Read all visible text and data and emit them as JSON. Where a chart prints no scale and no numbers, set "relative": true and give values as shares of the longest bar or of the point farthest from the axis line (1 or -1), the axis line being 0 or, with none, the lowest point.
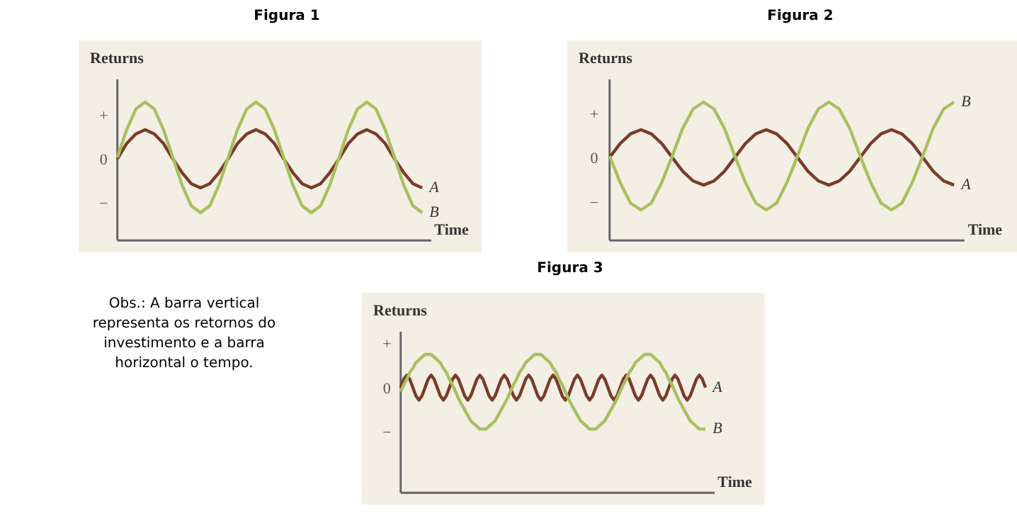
{
  "chart_data": [
    {
      "type": "line",
      "title": "Figura 1",
      "xlabel": "Time",
      "ylabel": "Returns",
      "relative": true,
      "categories": [
        null,
        null,
        null,
        null,
        null,
        null,
        null,
        null,
        null,
        null,
        null,
        null,
        null,
        null,
        null,
        null,
        null,
        null,
        null,
        null,
        null,
        null,
        null,
        null,
        null,
        null,
        null,
        null,
        null,
        null,
        null,
        null,
        null,
        null
      ],
      "annotations": [
        "+",
        "0",
        "−"
      ],
      "series": [
        {
          "name": "A",
          "color": "#7b3b2a",
          "values": [
            0.59,
            0.7,
            0.77,
            0.8,
            0.77,
            0.7,
            0.59,
            0.49,
            0.41,
            0.38,
            0.41,
            0.49,
            0.59,
            0.7,
            0.77,
            0.8,
            0.77,
            0.7,
            0.59,
            0.49,
            0.41,
            0.38,
            0.41,
            0.49,
            0.59,
            0.7,
            0.77,
            0.8,
            0.77,
            0.7,
            0.59,
            0.49,
            0.41,
            0.38
          ]
        },
        {
          "name": "B",
          "color": "#a8c060",
          "values": [
            0.6,
            0.8,
            0.95,
            1,
            0.95,
            0.8,
            0.6,
            0.4,
            0.25,
            0.2,
            0.25,
            0.4,
            0.6,
            0.8,
            0.95,
            1,
            0.95,
            0.8,
            0.6,
            0.4,
            0.25,
            0.2,
            0.25,
            0.4,
            0.6,
            0.8,
            0.95,
            1,
            0.95,
            0.8,
            0.6,
            0.4,
            0.25,
            0.2
          ]
        }
      ]
    },
    {
      "type": "line",
      "title": "Figura 2",
      "xlabel": "Time",
      "ylabel": "Returns",
      "relative": true,
      "categories": [
        null,
        null,
        null,
        null,
        null,
        null,
        null,
        null,
        null,
        null,
        null,
        null,
        null,
        null,
        null,
        null,
        null,
        null,
        null,
        null,
        null,
        null,
        null,
        null,
        null,
        null,
        null,
        null,
        null,
        null,
        null,
        null,
        null,
        null
      ],
      "annotations": [
        "+",
        "0",
        "−"
      ],
      "series": [
        {
          "name": "A",
          "color": "#7b3b2a",
          "values": [
            0.6,
            0.7,
            0.77,
            0.8,
            0.77,
            0.7,
            0.6,
            0.5,
            0.43,
            0.4,
            0.43,
            0.5,
            0.6,
            0.7,
            0.77,
            0.8,
            0.77,
            0.7,
            0.6,
            0.5,
            0.43,
            0.4,
            0.43,
            0.5,
            0.6,
            0.7,
            0.77,
            0.8,
            0.77,
            0.7,
            0.6,
            0.5,
            0.43,
            0.4
          ]
        },
        {
          "name": "B",
          "color": "#a8c060",
          "values": [
            0.61,
            0.42,
            0.27,
            0.22,
            0.27,
            0.42,
            0.61,
            0.81,
            0.95,
            1,
            0.95,
            0.81,
            0.61,
            0.42,
            0.27,
            0.22,
            0.27,
            0.42,
            0.61,
            0.81,
            0.95,
            1,
            0.95,
            0.81,
            0.61,
            0.42,
            0.27,
            0.22,
            0.27,
            0.42,
            0.61,
            0.81,
            0.95,
            1
          ]
        }
      ]
    },
    {
      "type": "line",
      "title": "Figura 3",
      "xlabel": "Time",
      "ylabel": "Returns",
      "relative": true,
      "categories": [
        null,
        null,
        null,
        null,
        null,
        null,
        null,
        null,
        null,
        null,
        null,
        null,
        null,
        null,
        null,
        null,
        null,
        null,
        null,
        null,
        null,
        null,
        null,
        null,
        null,
        null,
        null,
        null,
        null,
        null,
        null,
        null,
        null,
        null,
        null,
        null,
        null,
        null,
        null,
        null,
        null,
        null,
        null,
        null,
        null,
        null,
        null,
        null,
        null,
        null,
        null,
        null,
        null,
        null,
        null,
        null,
        null,
        null,
        null,
        null,
        null,
        null,
        null,
        null,
        null,
        null,
        null,
        null,
        null,
        null,
        null,
        null,
        null,
        null,
        null,
        null,
        null,
        null,
        null,
        null,
        null,
        null,
        null,
        null,
        null,
        null,
        null,
        null,
        null,
        null,
        null,
        null,
        null,
        null,
        null,
        null,
        null,
        null,
        null,
        null,
        null
      ],
      "annotations": [
        "+",
        "0",
        "−",
        "Obs.: A barra vertical representa os retornos do investimento e a barra horizontal o tempo."
      ],
      "series": [
        {
          "name": "A",
          "color": "#7b3b2a",
          "values": [
            0.76,
            0.82,
            0.85,
            0.82,
            0.76,
            0.7,
            0.67,
            0.7,
            0.76,
            0.82,
            0.85,
            0.82,
            0.76,
            0.7,
            0.67,
            0.7,
            0.76,
            0.82,
            0.85,
            0.82,
            0.76,
            0.7,
            0.67,
            0.7,
            0.76,
            0.82,
            0.85,
            0.82,
            0.76,
            0.7,
            0.67,
            0.7,
            0.76,
            0.82,
            0.85,
            0.82,
            0.76,
            0.7,
            0.67,
            0.7,
            0.76,
            0.82,
            0.85,
            0.82,
            0.76,
            0.7,
            0.67,
            0.7,
            0.76,
            0.82,
            0.85,
            0.82,
            0.76,
            0.7,
            0.67,
            0.7,
            0.76,
            0.82,
            0.85,
            0.82,
            0.76,
            0.7,
            0.67,
            0.7,
            0.76,
            0.82,
            0.85,
            0.82,
            0.76,
            0.7,
            0.67,
            0.7,
            0.76,
            0.82,
            0.85,
            0.82,
            0.76,
            0.7,
            0.67,
            0.7,
            0.76,
            0.82,
            0.85,
            0.82,
            0.76,
            0.7,
            0.67,
            0.7,
            0.76,
            0.82,
            0.85,
            0.82,
            0.76,
            0.7,
            0.67,
            0.7,
            0.76,
            0.82,
            0.85,
            0.82,
            0.76
          ]
        },
        {
          "name": "B",
          "color": "#a8c060",
          "values": [
            0.73,
            0.78,
            0.82,
            0.87,
            0.9,
            0.94,
            0.96,
            0.98,
            1,
            1,
            1,
            0.98,
            0.96,
            0.94,
            0.9,
            0.87,
            0.82,
            0.78,
            0.73,
            0.68,
            0.64,
            0.6,
            0.56,
            0.52,
            0.5,
            0.48,
            0.46,
            0.46,
            0.46,
            0.48,
            0.5,
            0.52,
            0.56,
            0.6,
            0.64,
            0.68,
            0.73,
            0.78,
            0.82,
            0.87,
            0.9,
            0.94,
            0.96,
            0.98,
            1,
            1,
            1,
            0.98,
            0.96,
            0.94,
            0.9,
            0.87,
            0.82,
            0.78,
            0.73,
            0.68,
            0.64,
            0.6,
            0.56,
            0.52,
            0.5,
            0.48,
            0.46,
            0.46,
            0.46,
            0.48,
            0.5,
            0.52,
            0.56,
            0.6,
            0.64,
            0.68,
            0.73,
            0.78,
            0.82,
            0.87,
            0.9,
            0.94,
            0.96,
            0.98,
            1,
            1,
            1,
            0.98,
            0.96,
            0.94,
            0.9,
            0.87,
            0.82,
            0.78,
            0.73,
            0.68,
            0.64,
            0.6,
            0.56,
            0.52,
            0.5,
            0.48,
            0.46,
            0.46,
            0.46
          ]
        }
      ]
    }
  ]
}
